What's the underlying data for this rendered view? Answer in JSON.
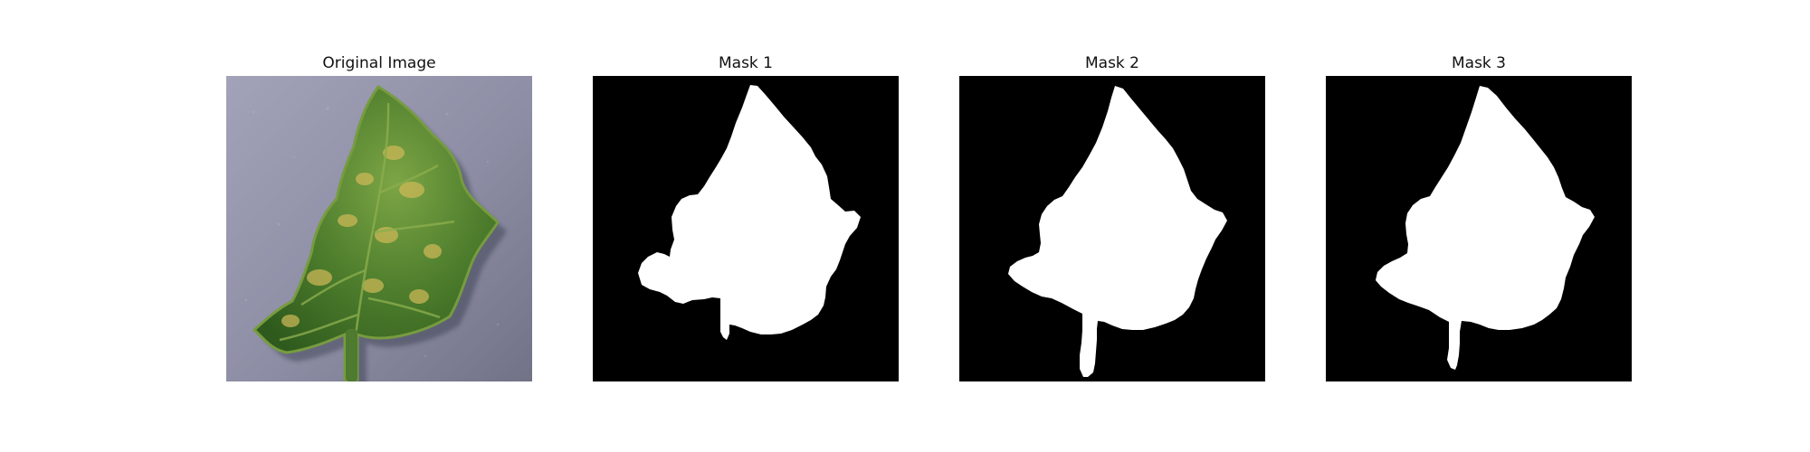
{
  "panels": [
    {
      "title": "Original Image",
      "kind": "photo",
      "subject": "leaf-photo"
    },
    {
      "title": "Mask 1",
      "kind": "mask"
    },
    {
      "title": "Mask 2",
      "kind": "mask"
    },
    {
      "title": "Mask 3",
      "kind": "mask"
    }
  ],
  "colors": {
    "background": "#ffffff",
    "mask_background": "#000000",
    "mask_foreground": "#ffffff",
    "photo_surface": "#8c8da3",
    "leaf_dark": "#2f5b1e",
    "leaf_mid": "#5e8d35",
    "leaf_light": "#b3b84d",
    "leaf_edge": "#7a9b3c"
  }
}
